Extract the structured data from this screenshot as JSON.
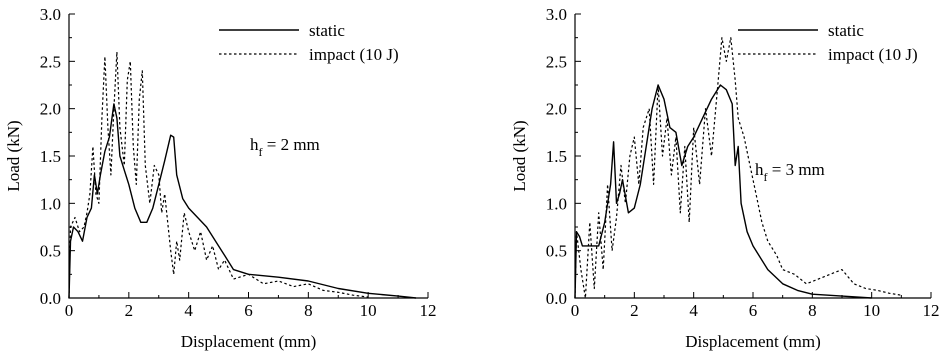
{
  "chart_data": [
    {
      "type": "line",
      "xlabel": "Displacement (mm)",
      "ylabel": "Load (kN)",
      "xlim": [
        0,
        12
      ],
      "ylim": [
        0,
        3.0
      ],
      "x_ticks": [
        "0",
        "2",
        "4",
        "6",
        "8",
        "10",
        "12"
      ],
      "y_ticks": [
        "0.0",
        "0.5",
        "1.0",
        "1.5",
        "2.0",
        "2.5",
        "3.0"
      ],
      "grid": false,
      "legend_position": "top-right",
      "annotation": {
        "main": "h",
        "sub": "f",
        "rest": " = 2 mm"
      },
      "series": [
        {
          "name": "static",
          "style": "solid",
          "color": "#000000",
          "points": [
            [
              0,
              0
            ],
            [
              0.05,
              0.6
            ],
            [
              0.15,
              0.75
            ],
            [
              0.3,
              0.7
            ],
            [
              0.45,
              0.6
            ],
            [
              0.6,
              0.85
            ],
            [
              0.75,
              0.95
            ],
            [
              0.85,
              1.3
            ],
            [
              0.95,
              1.1
            ],
            [
              1.05,
              1.3
            ],
            [
              1.2,
              1.55
            ],
            [
              1.35,
              1.7
            ],
            [
              1.5,
              2.05
            ],
            [
              1.6,
              1.9
            ],
            [
              1.7,
              1.5
            ],
            [
              1.85,
              1.35
            ],
            [
              2.0,
              1.2
            ],
            [
              2.2,
              0.95
            ],
            [
              2.4,
              0.8
            ],
            [
              2.6,
              0.8
            ],
            [
              2.8,
              0.95
            ],
            [
              3.0,
              1.2
            ],
            [
              3.2,
              1.45
            ],
            [
              3.4,
              1.72
            ],
            [
              3.5,
              1.7
            ],
            [
              3.6,
              1.3
            ],
            [
              3.8,
              1.05
            ],
            [
              4.0,
              0.95
            ],
            [
              4.3,
              0.85
            ],
            [
              4.6,
              0.75
            ],
            [
              4.9,
              0.6
            ],
            [
              5.2,
              0.45
            ],
            [
              5.5,
              0.3
            ],
            [
              6.0,
              0.25
            ],
            [
              7.0,
              0.22
            ],
            [
              8.0,
              0.18
            ],
            [
              9.0,
              0.1
            ],
            [
              10.0,
              0.05
            ],
            [
              11.0,
              0.02
            ],
            [
              11.6,
              0.0
            ]
          ]
        },
        {
          "name": "impact (10 J)",
          "style": "dotted",
          "color": "#000000",
          "points": [
            [
              0,
              0
            ],
            [
              0.05,
              0.75
            ],
            [
              0.2,
              0.85
            ],
            [
              0.35,
              0.7
            ],
            [
              0.5,
              0.75
            ],
            [
              0.6,
              0.9
            ],
            [
              0.7,
              1.1
            ],
            [
              0.8,
              1.6
            ],
            [
              0.9,
              1.1
            ],
            [
              1.0,
              1.0
            ],
            [
              1.1,
              1.9
            ],
            [
              1.2,
              2.55
            ],
            [
              1.3,
              1.8
            ],
            [
              1.4,
              1.3
            ],
            [
              1.5,
              2.0
            ],
            [
              1.6,
              2.6
            ],
            [
              1.7,
              1.8
            ],
            [
              1.85,
              1.4
            ],
            [
              1.95,
              2.3
            ],
            [
              2.05,
              2.5
            ],
            [
              2.15,
              1.6
            ],
            [
              2.25,
              1.2
            ],
            [
              2.35,
              2.1
            ],
            [
              2.45,
              2.4
            ],
            [
              2.55,
              1.4
            ],
            [
              2.7,
              1.0
            ],
            [
              2.85,
              1.4
            ],
            [
              3.0,
              1.3
            ],
            [
              3.1,
              0.9
            ],
            [
              3.2,
              1.1
            ],
            [
              3.3,
              0.8
            ],
            [
              3.4,
              0.5
            ],
            [
              3.5,
              0.25
            ],
            [
              3.6,
              0.6
            ],
            [
              3.7,
              0.4
            ],
            [
              3.85,
              0.9
            ],
            [
              4.0,
              0.7
            ],
            [
              4.2,
              0.5
            ],
            [
              4.4,
              0.7
            ],
            [
              4.6,
              0.4
            ],
            [
              4.8,
              0.55
            ],
            [
              5.0,
              0.3
            ],
            [
              5.2,
              0.4
            ],
            [
              5.5,
              0.2
            ],
            [
              6.0,
              0.25
            ],
            [
              6.5,
              0.15
            ],
            [
              7.0,
              0.18
            ],
            [
              7.5,
              0.12
            ],
            [
              8.0,
              0.15
            ],
            [
              8.5,
              0.08
            ],
            [
              9.0,
              0.06
            ],
            [
              9.5,
              0.03
            ],
            [
              10.0,
              0.01
            ]
          ]
        }
      ]
    },
    {
      "type": "line",
      "xlabel": "Displacement (mm)",
      "ylabel": "Load (kN)",
      "xlim": [
        0,
        12
      ],
      "ylim": [
        0,
        3.0
      ],
      "x_ticks": [
        "0",
        "2",
        "4",
        "6",
        "8",
        "10",
        "12"
      ],
      "y_ticks": [
        "0.0",
        "0.5",
        "1.0",
        "1.5",
        "2.0",
        "2.5",
        "3.0"
      ],
      "grid": false,
      "legend_position": "top-right",
      "annotation": {
        "main": "h",
        "sub": "f",
        "rest": " = 3 mm"
      },
      "series": [
        {
          "name": "static",
          "style": "solid",
          "color": "#000000",
          "points": [
            [
              0,
              0
            ],
            [
              0.05,
              0.7
            ],
            [
              0.15,
              0.65
            ],
            [
              0.25,
              0.55
            ],
            [
              0.5,
              0.55
            ],
            [
              0.8,
              0.55
            ],
            [
              1.0,
              0.8
            ],
            [
              1.2,
              1.2
            ],
            [
              1.3,
              1.65
            ],
            [
              1.4,
              1.0
            ],
            [
              1.5,
              1.1
            ],
            [
              1.6,
              1.25
            ],
            [
              1.8,
              0.9
            ],
            [
              2.0,
              0.95
            ],
            [
              2.2,
              1.2
            ],
            [
              2.4,
              1.6
            ],
            [
              2.6,
              2.0
            ],
            [
              2.8,
              2.25
            ],
            [
              3.0,
              2.1
            ],
            [
              3.2,
              1.8
            ],
            [
              3.4,
              1.75
            ],
            [
              3.6,
              1.4
            ],
            [
              3.8,
              1.6
            ],
            [
              4.0,
              1.7
            ],
            [
              4.3,
              1.9
            ],
            [
              4.6,
              2.1
            ],
            [
              4.9,
              2.25
            ],
            [
              5.1,
              2.2
            ],
            [
              5.3,
              2.05
            ],
            [
              5.4,
              1.4
            ],
            [
              5.5,
              1.6
            ],
            [
              5.6,
              1.0
            ],
            [
              5.8,
              0.7
            ],
            [
              6.0,
              0.55
            ],
            [
              6.5,
              0.3
            ],
            [
              7.0,
              0.15
            ],
            [
              7.5,
              0.08
            ],
            [
              8.0,
              0.04
            ],
            [
              9.0,
              0.02
            ],
            [
              10.0,
              0.0
            ]
          ]
        },
        {
          "name": "impact (10 J)",
          "style": "dotted",
          "color": "#000000",
          "points": [
            [
              0,
              0
            ],
            [
              0.05,
              0.7
            ],
            [
              0.2,
              0.3
            ],
            [
              0.35,
              0.0
            ],
            [
              0.5,
              0.8
            ],
            [
              0.65,
              0.1
            ],
            [
              0.8,
              0.9
            ],
            [
              0.95,
              0.3
            ],
            [
              1.1,
              1.2
            ],
            [
              1.25,
              0.5
            ],
            [
              1.4,
              0.85
            ],
            [
              1.55,
              1.4
            ],
            [
              1.7,
              1.0
            ],
            [
              1.85,
              1.5
            ],
            [
              2.0,
              1.7
            ],
            [
              2.15,
              1.2
            ],
            [
              2.3,
              1.8
            ],
            [
              2.5,
              2.0
            ],
            [
              2.65,
              1.2
            ],
            [
              2.8,
              2.25
            ],
            [
              2.95,
              1.5
            ],
            [
              3.1,
              1.9
            ],
            [
              3.25,
              1.3
            ],
            [
              3.4,
              1.7
            ],
            [
              3.55,
              0.9
            ],
            [
              3.7,
              1.6
            ],
            [
              3.85,
              0.8
            ],
            [
              4.0,
              1.8
            ],
            [
              4.2,
              1.2
            ],
            [
              4.4,
              2.0
            ],
            [
              4.6,
              1.5
            ],
            [
              4.8,
              2.2
            ],
            [
              4.95,
              2.75
            ],
            [
              5.1,
              2.5
            ],
            [
              5.25,
              2.75
            ],
            [
              5.4,
              2.3
            ],
            [
              5.5,
              1.9
            ],
            [
              5.7,
              1.7
            ],
            [
              5.9,
              1.4
            ],
            [
              6.1,
              1.1
            ],
            [
              6.3,
              0.8
            ],
            [
              6.5,
              0.6
            ],
            [
              6.8,
              0.45
            ],
            [
              7.0,
              0.3
            ],
            [
              7.4,
              0.25
            ],
            [
              7.8,
              0.15
            ],
            [
              8.2,
              0.2
            ],
            [
              8.6,
              0.25
            ],
            [
              9.0,
              0.3
            ],
            [
              9.4,
              0.15
            ],
            [
              9.8,
              0.1
            ],
            [
              10.2,
              0.08
            ],
            [
              10.6,
              0.05
            ],
            [
              11.0,
              0.03
            ]
          ]
        }
      ]
    }
  ]
}
